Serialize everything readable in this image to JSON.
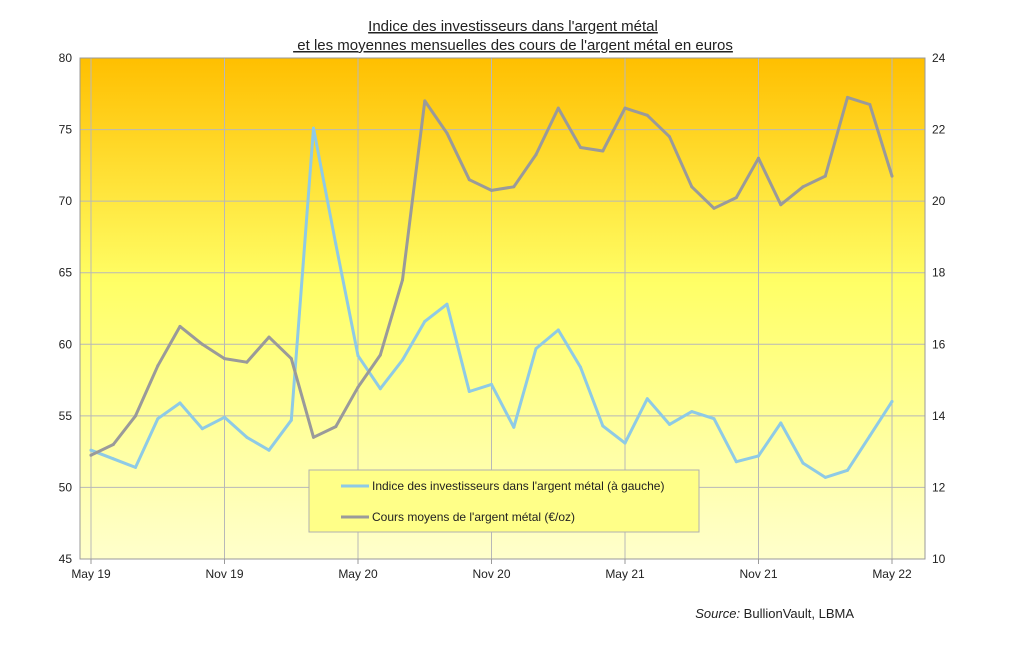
{
  "chart_data": {
    "type": "line",
    "title_line1": "Indice des investisseurs dans l'argent métal",
    "title_line2": " et les moyennes mensuelles des cours de l'argent métal en euros",
    "x_tick_labels": [
      "May 19",
      "Nov 19",
      "May 20",
      "Nov 20",
      "May 21",
      "Nov 21",
      "May 22"
    ],
    "x_tick_index": [
      0,
      6,
      12,
      18,
      24,
      30,
      36
    ],
    "months": [
      "May 19",
      "Jun 19",
      "Jul 19",
      "Aug 19",
      "Sep 19",
      "Oct 19",
      "Nov 19",
      "Dec 19",
      "Jan 20",
      "Feb 20",
      "Mar 20",
      "Apr 20",
      "May 20",
      "Jun 20",
      "Jul 20",
      "Aug 20",
      "Sep 20",
      "Oct 20",
      "Nov 20",
      "Dec 20",
      "Jan 21",
      "Feb 21",
      "Mar 21",
      "Apr 21",
      "May 21",
      "Jun 21",
      "Jul 21",
      "Aug 21",
      "Sep 21",
      "Oct 21",
      "Nov 21",
      "Dec 21",
      "Jan 22",
      "Feb 22",
      "Mar 22",
      "Apr 22",
      "May 22"
    ],
    "ylim_left": [
      45,
      80
    ],
    "yticks_left": [
      45,
      50,
      55,
      60,
      65,
      70,
      75,
      80
    ],
    "ylim_right": [
      10,
      24
    ],
    "yticks_right": [
      10,
      12,
      14,
      16,
      18,
      20,
      22,
      24
    ],
    "grid": true,
    "background_gradient": [
      "#ffbf00",
      "#ffff66",
      "#ffffcc"
    ],
    "series": [
      {
        "name": "Indice des investisseurs dans l'argent métal (à gauche)",
        "axis": "left",
        "color": "#8ecae6",
        "values": [
          52.6,
          52.0,
          51.4,
          54.8,
          55.9,
          54.1,
          54.9,
          53.5,
          52.6,
          54.7,
          75.1,
          67.0,
          59.2,
          56.9,
          58.9,
          61.6,
          62.8,
          56.7,
          57.2,
          54.2,
          59.7,
          61.0,
          58.4,
          54.3,
          53.1,
          56.2,
          54.4,
          55.3,
          54.8,
          51.8,
          52.2,
          54.5,
          51.7,
          50.7,
          51.2,
          53.6,
          56.0
        ]
      },
      {
        "name": "Cours moyens de l'argent métal (€/oz)",
        "axis": "right",
        "color": "#9a9a9a",
        "values": [
          12.9,
          13.2,
          14.0,
          15.4,
          16.5,
          16.0,
          15.6,
          15.5,
          16.2,
          15.6,
          13.4,
          13.7,
          14.8,
          15.7,
          17.8,
          22.8,
          21.9,
          20.6,
          20.3,
          20.4,
          21.3,
          22.6,
          21.5,
          21.4,
          22.6,
          22.4,
          21.8,
          20.4,
          19.8,
          20.1,
          21.2,
          19.9,
          20.4,
          20.7,
          22.9,
          22.7,
          20.7
        ]
      }
    ]
  },
  "source_label": "Source:",
  "source_text": " BullionVault, LBMA"
}
